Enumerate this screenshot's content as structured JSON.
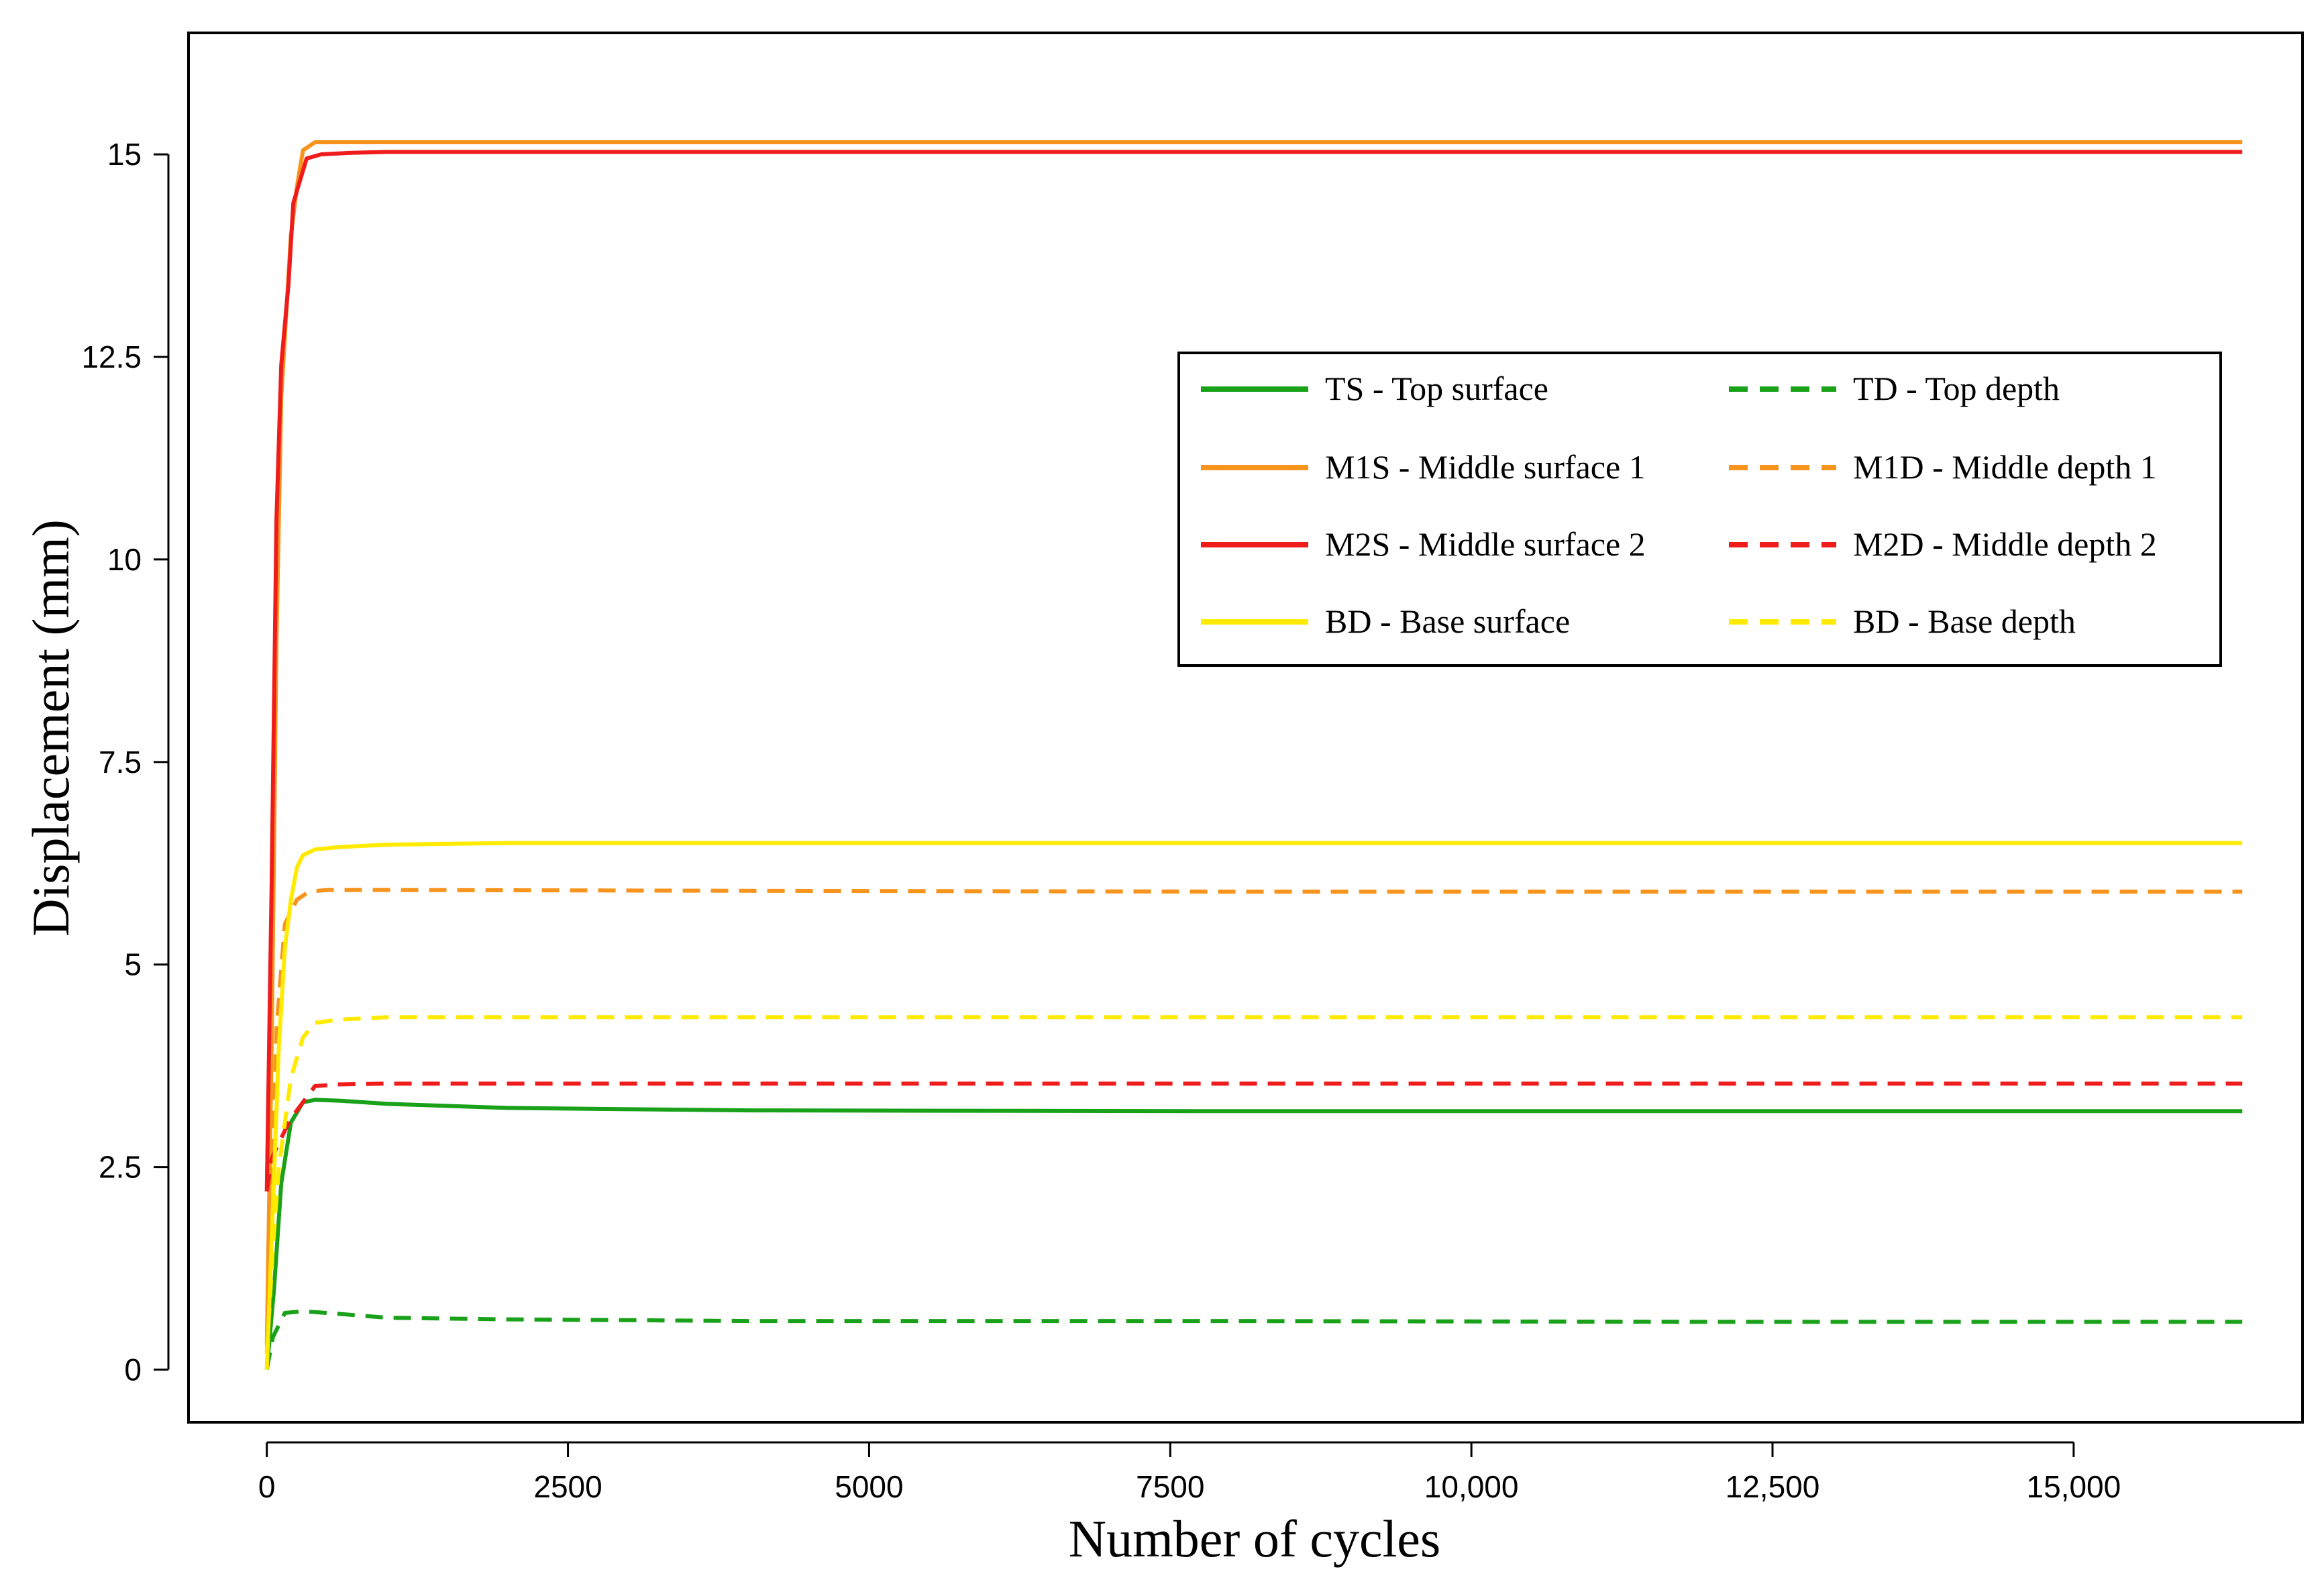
{
  "chart_data": {
    "type": "line",
    "title": "",
    "xlabel": "Number of cycles",
    "ylabel": "Displacement (mm)",
    "xlim": [
      -650,
      16900
    ],
    "ylim": [
      -0.65,
      16.5
    ],
    "xticks": [
      0,
      2500,
      5000,
      7500,
      10000,
      12500,
      15000
    ],
    "xtick_labels": [
      "0",
      "2500",
      "5000",
      "7500",
      "10,000",
      "12,500",
      "15,000"
    ],
    "yticks": [
      0,
      2.5,
      5,
      7.5,
      10,
      12.5,
      15
    ],
    "ytick_labels": [
      "0",
      "2.5",
      "5",
      "7.5",
      "10",
      "12.5",
      "15"
    ],
    "grid": false,
    "legend_position": "top-right",
    "legend_columns": 2,
    "series": [
      {
        "name": "TS - Top surface",
        "color": "#1aa11a",
        "dash": "solid",
        "x": [
          0,
          60,
          120,
          200,
          300,
          400,
          600,
          1000,
          2000,
          4000,
          8000,
          12000,
          16400
        ],
        "y": [
          0,
          1.0,
          2.3,
          3.05,
          3.3,
          3.33,
          3.32,
          3.28,
          3.23,
          3.2,
          3.19,
          3.19,
          3.19
        ]
      },
      {
        "name": "TD - Top depth",
        "color": "#1aa11a",
        "dash": "dashed",
        "x": [
          0,
          50,
          150,
          300,
          500,
          1000,
          2000,
          4000,
          8000,
          12000,
          16400
        ],
        "y": [
          0,
          0.4,
          0.7,
          0.72,
          0.7,
          0.64,
          0.62,
          0.6,
          0.6,
          0.59,
          0.59
        ]
      },
      {
        "name": "M1S - Middle surface 1",
        "color": "#f7941d",
        "dash": "solid",
        "x": [
          0,
          40,
          80,
          120,
          160,
          200,
          250,
          300,
          400,
          600,
          1000,
          4000,
          8000,
          12000,
          16400
        ],
        "y": [
          0.3,
          4.0,
          9.0,
          12.0,
          13.0,
          14.0,
          14.6,
          15.05,
          15.15,
          15.15,
          15.15,
          15.15,
          15.15,
          15.15,
          15.15
        ]
      },
      {
        "name": "M1D - Middle depth 1",
        "color": "#f7941d",
        "dash": "dashed",
        "x": [
          0,
          40,
          80,
          150,
          250,
          350,
          500,
          1000,
          4000,
          8000,
          12000,
          16400
        ],
        "y": [
          0.2,
          2.0,
          4.2,
          5.5,
          5.8,
          5.9,
          5.92,
          5.92,
          5.91,
          5.9,
          5.9,
          5.9
        ]
      },
      {
        "name": "M2S - Middle surface 2",
        "color": "#ef1c1c",
        "dash": "solid",
        "x": [
          0,
          40,
          80,
          120,
          180,
          220,
          260,
          330,
          450,
          700,
          1000,
          4000,
          8000,
          12000,
          16400
        ],
        "y": [
          2.2,
          6.0,
          10.5,
          12.4,
          13.4,
          14.4,
          14.6,
          14.95,
          15.0,
          15.02,
          15.03,
          15.03,
          15.03,
          15.03,
          15.03
        ]
      },
      {
        "name": "M2D - Middle depth 2",
        "color": "#ef1c1c",
        "dash": "dashed",
        "x": [
          0,
          40,
          100,
          200,
          300,
          400,
          600,
          1000,
          4000,
          8000,
          12000,
          16400
        ],
        "y": [
          2.2,
          2.6,
          2.8,
          3.1,
          3.3,
          3.5,
          3.52,
          3.53,
          3.53,
          3.53,
          3.53,
          3.53
        ]
      },
      {
        "name": "BD - Base surface",
        "color": "#ffea00",
        "dash": "solid",
        "x": [
          0,
          50,
          100,
          150,
          200,
          250,
          300,
          400,
          600,
          1000,
          2000,
          4000,
          8000,
          12000,
          16400
        ],
        "y": [
          0,
          2.0,
          4.0,
          5.2,
          5.8,
          6.2,
          6.35,
          6.42,
          6.45,
          6.48,
          6.5,
          6.5,
          6.5,
          6.5,
          6.5
        ]
      },
      {
        "name": "BD - Base depth",
        "color": "#ffea00",
        "dash": "dashed",
        "x": [
          0,
          50,
          100,
          200,
          300,
          400,
          600,
          1000,
          4000,
          8000,
          12000,
          16400
        ],
        "y": [
          0.2,
          1.5,
          2.5,
          3.6,
          4.1,
          4.28,
          4.32,
          4.35,
          4.35,
          4.35,
          4.35,
          4.35
        ]
      }
    ]
  }
}
